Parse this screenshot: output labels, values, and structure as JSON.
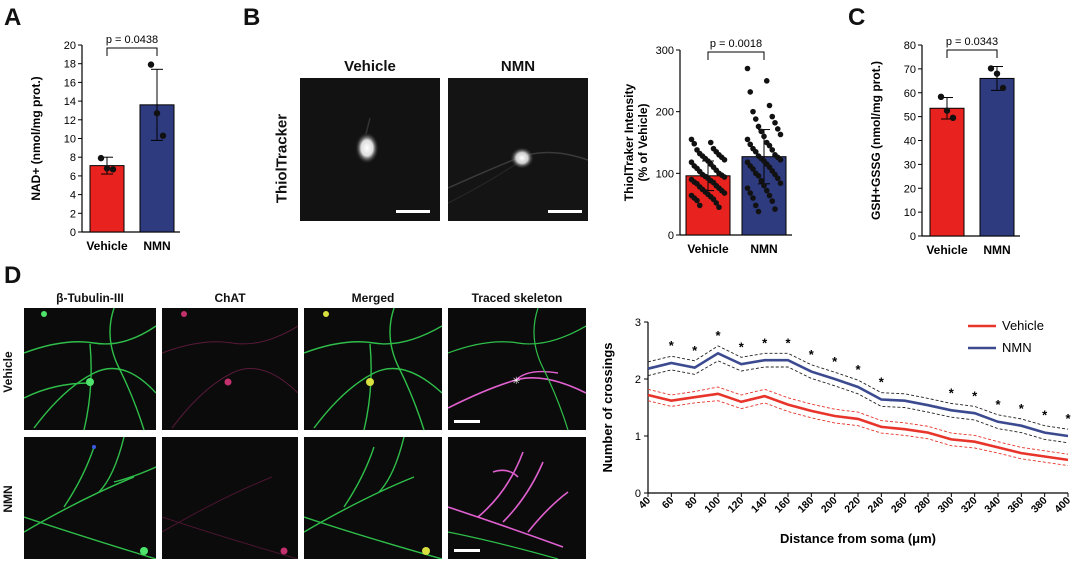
{
  "panels": {
    "A": "A",
    "B": "B",
    "C": "C",
    "D": "D"
  },
  "colors": {
    "vehicle": "#e8231f",
    "nmn": "#2e3b7e",
    "vehicle_line": "#e8352c",
    "nmn_line": "#3c4a8f"
  },
  "panelB": {
    "col_labels": [
      "Vehicle",
      "NMN"
    ],
    "row_label": "ThiolTracker"
  },
  "panelD": {
    "col_labels": [
      "β-Tubulin-III",
      "ChAT",
      "Merged",
      "Traced skeleton"
    ],
    "row_labels": [
      "Vehicle",
      "NMN"
    ]
  },
  "chart_data": [
    {
      "id": "A",
      "type": "bar",
      "categories": [
        "Vehicle",
        "NMN"
      ],
      "values": [
        7.1,
        13.6
      ],
      "errors": [
        0.9,
        3.8
      ],
      "points": [
        [
          7.9,
          6.8,
          6.7
        ],
        [
          17.9,
          12.7,
          10.3
        ]
      ],
      "ylabel": "NAD+ (nmol/mg prot.)",
      "ylim": [
        0,
        20
      ],
      "yticks": [
        0,
        2,
        4,
        6,
        8,
        10,
        12,
        14,
        16,
        18,
        20
      ],
      "pvalue": "p = 0.0438"
    },
    {
      "id": "B",
      "type": "bar",
      "categories": [
        "Vehicle",
        "NMN"
      ],
      "values": [
        96,
        127
      ],
      "errors": [
        24,
        44
      ],
      "points": [
        [
          155,
          150,
          148,
          140,
          138,
          135,
          132,
          130,
          128,
          126,
          124,
          122,
          120,
          118,
          115,
          112,
          110,
          108,
          105,
          103,
          100,
          98,
          97,
          95,
          94,
          92,
          90,
          88,
          86,
          85,
          83,
          80,
          78,
          76,
          74,
          72,
          70,
          68,
          66,
          64,
          62,
          60,
          58,
          56,
          52,
          48,
          45
        ],
        [
          270,
          250,
          232,
          210,
          200,
          192,
          188,
          182,
          176,
          172,
          168,
          163,
          160,
          155,
          150,
          147,
          145,
          140,
          138,
          135,
          130,
          128,
          126,
          124,
          122,
          120,
          118,
          115,
          112,
          110,
          107,
          104,
          100,
          98,
          96,
          92,
          88,
          84,
          80,
          76,
          72,
          68,
          64,
          60,
          55,
          48,
          42,
          38
        ]
      ],
      "ylabel": "ThiolTraker Intensity\n(% of Vehicle)",
      "ylim": [
        0,
        300
      ],
      "yticks": [
        0,
        100,
        200,
        300
      ],
      "pvalue": "p = 0.0018"
    },
    {
      "id": "C",
      "type": "bar",
      "categories": [
        "Vehicle",
        "NMN"
      ],
      "values": [
        53.5,
        66
      ],
      "errors": [
        4.5,
        5
      ],
      "points": [
        [
          58.3,
          52.5,
          49.5
        ],
        [
          70.2,
          68,
          62
        ]
      ],
      "ylabel": "GSH+GSSG (nmol/mg prot.)",
      "ylim": [
        0,
        80
      ],
      "yticks": [
        0,
        10,
        20,
        30,
        40,
        50,
        60,
        70,
        80
      ],
      "pvalue": "p = 0.0343"
    },
    {
      "id": "D",
      "type": "line",
      "x": [
        40,
        60,
        80,
        100,
        120,
        140,
        160,
        180,
        200,
        220,
        240,
        260,
        280,
        300,
        320,
        340,
        360,
        380,
        400
      ],
      "xlabel": "Distance from soma (μm)",
      "ylabel": "Number of crossings",
      "xlim": [
        40,
        400
      ],
      "ylim": [
        0,
        3
      ],
      "yticks": [
        0,
        1,
        2,
        3
      ],
      "legend": "top-right",
      "significant_x": [
        60,
        80,
        100,
        120,
        140,
        160,
        180,
        200,
        220,
        240,
        300,
        320,
        340,
        360,
        380,
        400
      ],
      "series": [
        {
          "name": "Vehicle",
          "values": [
            1.72,
            1.62,
            1.68,
            1.74,
            1.6,
            1.7,
            1.55,
            1.44,
            1.35,
            1.3,
            1.16,
            1.12,
            1.06,
            0.94,
            0.9,
            0.8,
            0.7,
            0.64,
            0.58
          ],
          "upper": [
            1.82,
            1.72,
            1.78,
            1.86,
            1.72,
            1.82,
            1.67,
            1.56,
            1.47,
            1.42,
            1.27,
            1.23,
            1.17,
            1.05,
            1.01,
            0.9,
            0.8,
            0.74,
            0.68
          ],
          "lower": [
            1.62,
            1.52,
            1.58,
            1.62,
            1.48,
            1.58,
            1.43,
            1.32,
            1.23,
            1.18,
            1.05,
            1.01,
            0.95,
            0.83,
            0.79,
            0.7,
            0.6,
            0.54,
            0.48
          ]
        },
        {
          "name": "NMN",
          "values": [
            2.18,
            2.28,
            2.2,
            2.45,
            2.26,
            2.33,
            2.33,
            2.13,
            2.0,
            1.86,
            1.64,
            1.62,
            1.54,
            1.45,
            1.4,
            1.25,
            1.18,
            1.06,
            1.0
          ],
          "upper": [
            2.3,
            2.4,
            2.32,
            2.58,
            2.38,
            2.45,
            2.45,
            2.25,
            2.12,
            1.98,
            1.76,
            1.74,
            1.66,
            1.57,
            1.52,
            1.37,
            1.3,
            1.18,
            1.12
          ],
          "lower": [
            2.06,
            2.16,
            2.08,
            2.32,
            2.14,
            2.21,
            2.21,
            2.01,
            1.88,
            1.74,
            1.52,
            1.5,
            1.42,
            1.33,
            1.28,
            1.13,
            1.06,
            0.94,
            0.88
          ]
        }
      ]
    }
  ]
}
